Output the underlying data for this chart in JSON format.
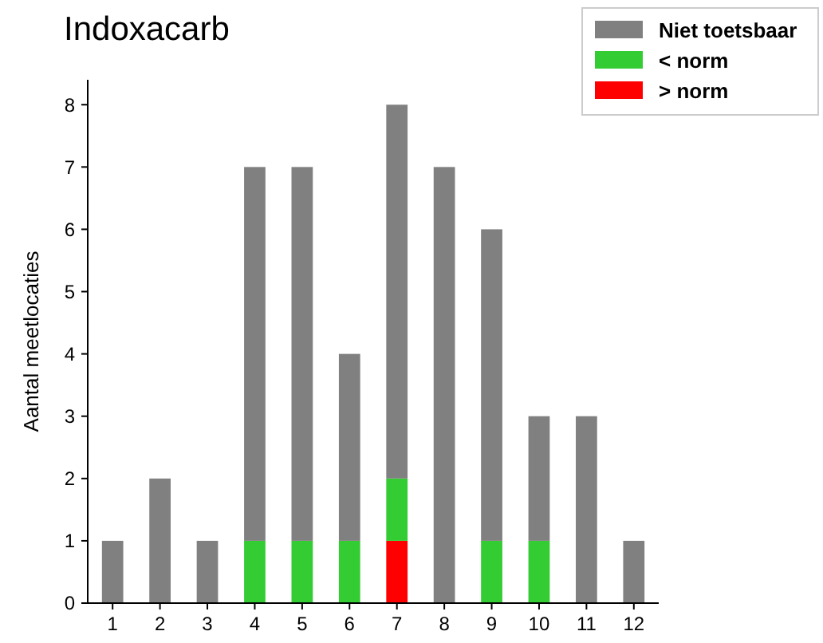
{
  "chart_data": {
    "type": "bar",
    "title": "Indoxacarb",
    "ylabel": "Aantal meetlocaties",
    "stacked": true,
    "legend": "top right",
    "categories": [
      "1",
      "2",
      "3",
      "4",
      "5",
      "6",
      "7",
      "8",
      "9",
      "10",
      "11",
      "12"
    ],
    "series": [
      {
        "name": "> norm",
        "color": "#ff0000",
        "values": [
          0,
          0,
          0,
          0,
          0,
          0,
          1,
          0,
          0,
          0,
          0,
          0
        ]
      },
      {
        "name": "< norm",
        "color": "#33cc33",
        "values": [
          0,
          0,
          0,
          1,
          1,
          1,
          1,
          0,
          1,
          1,
          0,
          0
        ]
      },
      {
        "name": "Niet toetsbaar",
        "color": "#808080",
        "values": [
          1,
          2,
          1,
          6,
          6,
          3,
          6,
          7,
          5,
          2,
          3,
          1
        ]
      }
    ],
    "ylim": [
      0,
      8.4
    ],
    "yticks": [
      0,
      1,
      2,
      3,
      4,
      5,
      6,
      7,
      8
    ],
    "grid": false
  }
}
